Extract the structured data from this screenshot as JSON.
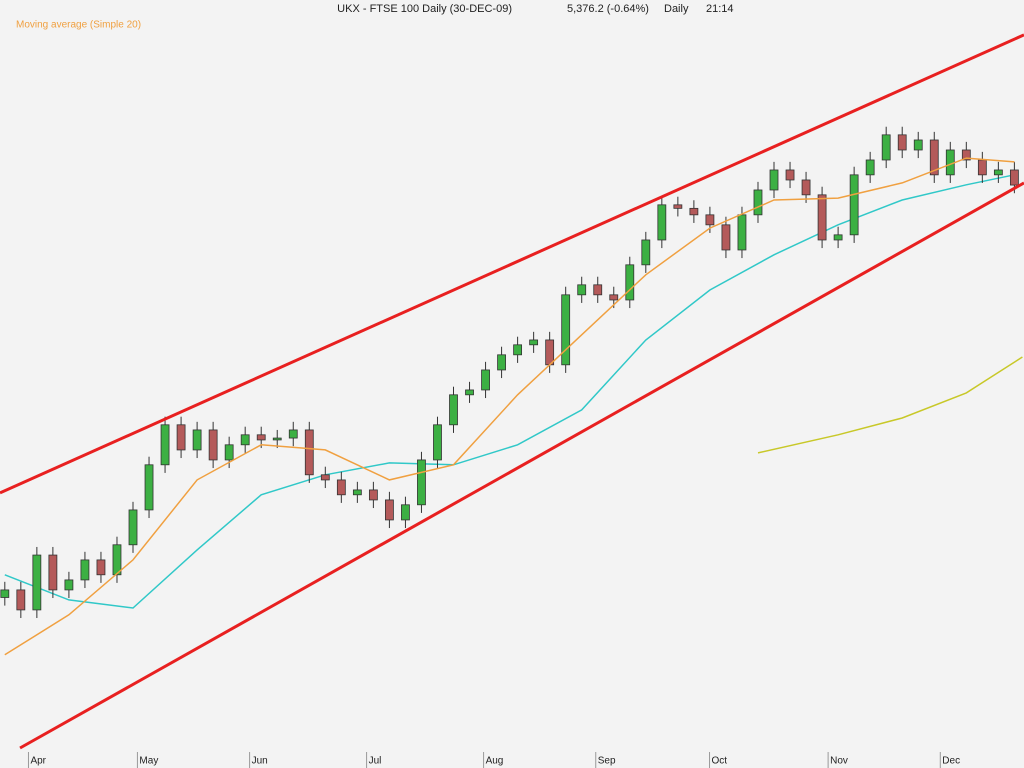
{
  "chart_data": {
    "type": "candlestick",
    "title": "UKX - FTSE 100 Daily (30-DEC-09)",
    "last_price": "5,376.2 (-0.64%)",
    "period": "Daily",
    "time": "21:14",
    "xlim": [
      -0.3,
      63.6
    ],
    "ylim": [
      3219,
      6061
    ],
    "xticks": [
      {
        "value": 2.1,
        "label": "Apr"
      },
      {
        "value": 8.9,
        "label": "May"
      },
      {
        "value": 15.9,
        "label": "Jun"
      },
      {
        "value": 23.2,
        "label": "Jul"
      },
      {
        "value": 30.5,
        "label": "Aug"
      },
      {
        "value": 37.5,
        "label": "Sep"
      },
      {
        "value": 44.6,
        "label": "Oct"
      },
      {
        "value": 52,
        "label": "Nov"
      },
      {
        "value": 59,
        "label": "Dec"
      }
    ],
    "up_color": "#3cb043",
    "down_color": "#b45a5a",
    "open": [
      3850,
      3878,
      3804,
      4007,
      3878,
      3915,
      3989,
      3934,
      4045,
      4174,
      4341,
      4489,
      4396,
      4470,
      4359,
      4415,
      4452,
      4433,
      4440,
      4470,
      4304,
      4285,
      4230,
      4248,
      4211,
      4137,
      4193,
      4359,
      4489,
      4600,
      4618,
      4692,
      4748,
      4785,
      4803,
      4711,
      4970,
      5007,
      4970,
      4951,
      5081,
      5173,
      5303,
      5290,
      5266,
      5229,
      5136,
      5266,
      5358,
      5432,
      5395,
      5340,
      5173,
      5192,
      5414,
      5469,
      5562,
      5506,
      5543,
      5414,
      5506,
      5469,
      5414,
      5432
    ],
    "high": [
      3908,
      3908,
      4037,
      4037,
      3945,
      4019,
      4019,
      4075,
      4204,
      4371,
      4519,
      4519,
      4500,
      4500,
      4445,
      4482,
      4482,
      4470,
      4500,
      4500,
      4334,
      4315,
      4278,
      4278,
      4241,
      4223,
      4389,
      4519,
      4630,
      4648,
      4722,
      4778,
      4815,
      4833,
      4833,
      5000,
      5037,
      5037,
      5000,
      5111,
      5203,
      5333,
      5333,
      5320,
      5296,
      5259,
      5296,
      5388,
      5462,
      5462,
      5425,
      5370,
      5222,
      5444,
      5499,
      5592,
      5592,
      5573,
      5573,
      5536,
      5536,
      5499,
      5462,
      5462
    ],
    "low": [
      3820,
      3774,
      3774,
      3848,
      3848,
      3885,
      3904,
      3904,
      4015,
      4144,
      4311,
      4366,
      4366,
      4329,
      4329,
      4385,
      4403,
      4403,
      4410,
      4274,
      4255,
      4200,
      4200,
      4181,
      4107,
      4107,
      4163,
      4329,
      4459,
      4570,
      4588,
      4662,
      4718,
      4755,
      4681,
      4681,
      4940,
      4940,
      4921,
      4921,
      5051,
      5143,
      5260,
      5236,
      5199,
      5106,
      5106,
      5236,
      5328,
      5365,
      5310,
      5143,
      5143,
      5162,
      5384,
      5439,
      5476,
      5476,
      5384,
      5384,
      5439,
      5384,
      5384,
      5346
    ],
    "close": [
      3878,
      3804,
      4007,
      3878,
      3915,
      3989,
      3934,
      4045,
      4174,
      4341,
      4489,
      4396,
      4470,
      4359,
      4415,
      4452,
      4433,
      4440,
      4470,
      4304,
      4285,
      4230,
      4248,
      4211,
      4137,
      4193,
      4359,
      4489,
      4600,
      4618,
      4692,
      4748,
      4785,
      4803,
      4711,
      4970,
      5007,
      4970,
      4951,
      5081,
      5173,
      5303,
      5290,
      5266,
      5229,
      5136,
      5266,
      5358,
      5432,
      5395,
      5340,
      5173,
      5192,
      5414,
      5469,
      5562,
      5506,
      5543,
      5414,
      5506,
      5469,
      5414,
      5432,
      5376.2
    ],
    "lines": [
      {
        "name": "Moving average (Simple 20)",
        "color": "#f0a040",
        "x": [
          0,
          4,
          8,
          12,
          16,
          20,
          24,
          28,
          32,
          36,
          40,
          44,
          48,
          52,
          56,
          60,
          63
        ],
        "values": [
          3638,
          3786,
          3989,
          4285,
          4415,
          4396,
          4285,
          4341,
          4600,
          4822,
          5044,
          5217,
          5321,
          5328,
          5384,
          5476,
          5462
        ]
      },
      {
        "color": "#30c8c8",
        "x": [
          0,
          4,
          8,
          12,
          16,
          20,
          24,
          28,
          32,
          36,
          40,
          44,
          48,
          52,
          56,
          60,
          63
        ],
        "values": [
          3934,
          3841,
          3811,
          4026,
          4230,
          4304,
          4348,
          4341,
          4415,
          4544,
          4803,
          4988,
          5118,
          5229,
          5321,
          5377,
          5414
        ]
      },
      {
        "color": "#c8c828",
        "x": [
          47,
          52,
          56,
          60,
          63.5
        ],
        "values": [
          4385,
          4452,
          4514,
          4607,
          4740
        ]
      }
    ],
    "channels": [
      {
        "color": "#e82020",
        "x": [
          -0.3,
          63.6
        ],
        "values": [
          4237,
          5932
        ]
      },
      {
        "color": "#e82020",
        "x": [
          0.95,
          63.6
        ],
        "values": [
          3293,
          5384
        ]
      }
    ]
  }
}
